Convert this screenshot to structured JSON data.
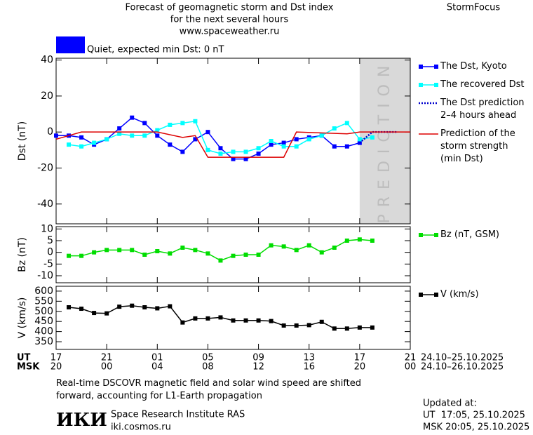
{
  "header": {
    "title": "Forecast of geomagnetic storm and Dst index",
    "subtitle": "for the next several hours",
    "url": "www.spaceweather.ru",
    "brand": "StormFocus",
    "status": "Quiet, expected min Dst: 0 nT",
    "status_color": "#0000ff"
  },
  "x_axis": {
    "xlim": [
      0,
      28
    ],
    "ut_label": "UT",
    "msk_label": "MSK",
    "xticks": [
      {
        "value": 0,
        "label": "17"
      },
      {
        "value": 4,
        "label": "21"
      },
      {
        "value": 8,
        "label": "01"
      },
      {
        "value": 12,
        "label": "05"
      },
      {
        "value": 16,
        "label": "09"
      },
      {
        "value": 20,
        "label": "13"
      },
      {
        "value": 24,
        "label": "17"
      },
      {
        "value": 28,
        "label": "21"
      }
    ],
    "xticks_msk": [
      {
        "value": 0,
        "label": "20"
      },
      {
        "value": 4,
        "label": "00"
      },
      {
        "value": 8,
        "label": "04"
      },
      {
        "value": 12,
        "label": "08"
      },
      {
        "value": 16,
        "label": "12"
      },
      {
        "value": 20,
        "label": "16"
      },
      {
        "value": 24,
        "label": "20"
      },
      {
        "value": 28,
        "label": "00"
      }
    ],
    "ut_dates": "24.10–25.10.2025",
    "msk_dates": "24.10–26.10.2025"
  },
  "chart_data": [
    {
      "type": "line",
      "y_label": "Dst (nT)",
      "ylim": [
        -51,
        41
      ],
      "yticks": [
        -40,
        -20,
        0,
        20,
        40
      ],
      "shaded_region": {
        "label": "PREDICTION",
        "x": [
          24,
          28
        ],
        "color": "#d9d9d9"
      },
      "series": [
        {
          "name": "The Dst, Kyoto",
          "color": "#0000ff",
          "marker": "square",
          "dash": false,
          "x": [
            0,
            1,
            2,
            3,
            4,
            5,
            6,
            7,
            8,
            9,
            10,
            11,
            12,
            13,
            14,
            15,
            16,
            17,
            18,
            19,
            20,
            21,
            22,
            23,
            24
          ],
          "values": [
            -2,
            -2,
            -3,
            -7,
            -4,
            2,
            8,
            5,
            -2,
            -7,
            -11,
            -4,
            0,
            -9,
            -15,
            -15,
            -12,
            -7,
            -6,
            -4,
            -3,
            -2,
            -8,
            -8,
            -6
          ]
        },
        {
          "name": "The recovered Dst",
          "color": "#00ffff",
          "marker": "square",
          "dash": false,
          "x": [
            1,
            2,
            3,
            4,
            5,
            6,
            7,
            8,
            9,
            10,
            11,
            12,
            13,
            14,
            15,
            16,
            17,
            18,
            19,
            20,
            21,
            22,
            23,
            24,
            25
          ],
          "values": [
            -7,
            -8,
            -6,
            -4,
            -1,
            -2,
            -2,
            1,
            4,
            5,
            6,
            -10,
            -12,
            -11,
            -11,
            -9,
            -5,
            -8,
            -8,
            -4,
            -2,
            2,
            5,
            -4,
            -3
          ]
        },
        {
          "name": "The Dst prediction\n2–4 hours ahead",
          "color": "#0000cc",
          "marker": null,
          "dash": true,
          "x": [
            24,
            25,
            26,
            27
          ],
          "values": [
            -6,
            0,
            0,
            0
          ]
        },
        {
          "name": "Prediction of the\nstorm strength\n(min Dst)",
          "color": "#dd0000",
          "marker": null,
          "dash": false,
          "x": [
            0,
            2,
            8,
            10,
            11,
            12,
            18,
            19,
            23,
            24,
            28
          ],
          "values": [
            -4,
            0,
            0,
            -3,
            -2,
            -14,
            -14,
            0,
            -1,
            0,
            0
          ]
        }
      ]
    },
    {
      "type": "line",
      "y_label": "Bz (nT)",
      "ylim": [
        -13,
        11
      ],
      "yticks": [
        -10,
        -5,
        0,
        5,
        10
      ],
      "series": [
        {
          "name": "Bz (nT, GSM)",
          "color": "#00dd00",
          "marker": "square",
          "dash": false,
          "x": [
            1,
            2,
            3,
            4,
            5,
            6,
            7,
            8,
            9,
            10,
            11,
            12,
            13,
            14,
            15,
            16,
            17,
            18,
            19,
            20,
            21,
            22,
            23,
            24,
            25
          ],
          "values": [
            -1.5,
            -1.5,
            0,
            1,
            1,
            1,
            -1,
            0.5,
            -0.5,
            2,
            1,
            -0.5,
            -3.5,
            -1.5,
            -1,
            -1,
            3,
            2.5,
            1,
            3,
            0,
            2,
            5,
            5.5,
            5
          ]
        }
      ]
    },
    {
      "type": "line",
      "y_label": "V (km/s)",
      "ylim": [
        312,
        624
      ],
      "yticks": [
        350,
        400,
        450,
        500,
        550,
        600
      ],
      "series": [
        {
          "name": "V (km/s)",
          "color": "#000000",
          "marker": "square",
          "dash": false,
          "x": [
            1,
            2,
            3,
            4,
            5,
            6,
            7,
            8,
            9,
            10,
            11,
            12,
            13,
            14,
            15,
            16,
            17,
            18,
            19,
            20,
            21,
            22,
            23,
            24,
            25
          ],
          "values": [
            520,
            513,
            492,
            490,
            523,
            528,
            520,
            515,
            525,
            445,
            465,
            465,
            470,
            455,
            455,
            455,
            452,
            430,
            430,
            432,
            448,
            415,
            415,
            420,
            420
          ]
        }
      ]
    }
  ],
  "footer": {
    "note": "Real-time DSCOVR magnetic field and solar wind speed are shifted\nforward, accounting for L1-Earth propagation",
    "logo": "ИКИ",
    "institute": "Space Research Institute RAS",
    "site": "iki.cosmos.ru",
    "updated_label": "Updated at:",
    "updated_ut": "UT  17:05, 25.10.2025",
    "updated_msk": "MSK 20:05, 25.10.2025"
  }
}
